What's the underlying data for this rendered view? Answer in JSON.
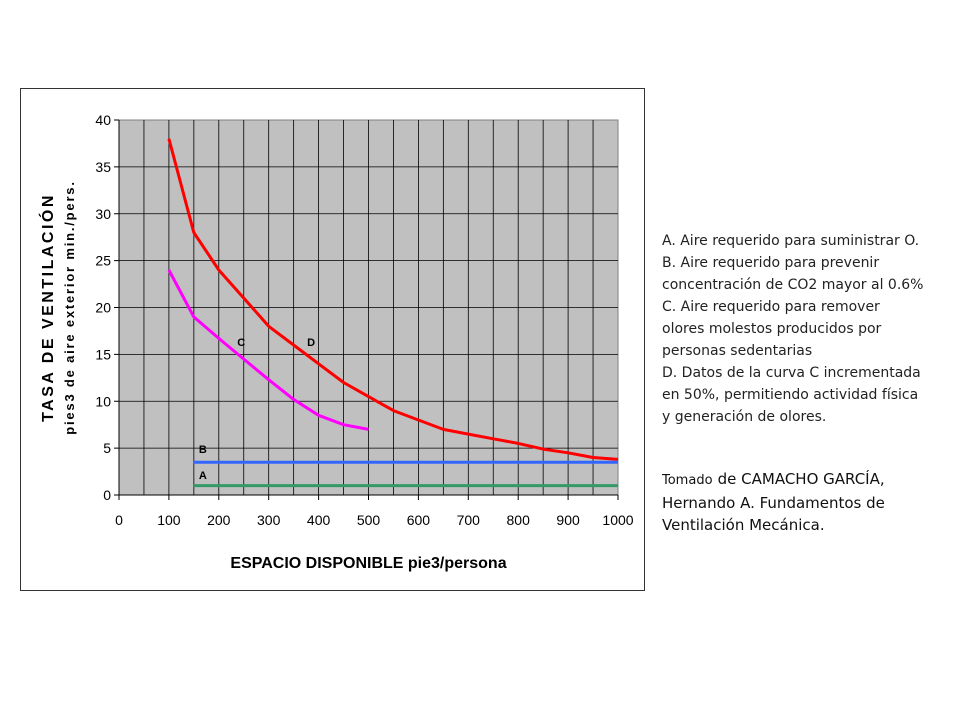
{
  "chart_data": {
    "type": "line",
    "title": "",
    "xlabel": "ESPACIO DISPONIBLE pie3/persona",
    "ylabel_line1": "TASA DE VENTILACIÓN",
    "ylabel_line2": "pies3 de aire exterior min./pers.",
    "xlim": [
      0,
      1000
    ],
    "ylim": [
      0,
      40
    ],
    "x_ticks": [
      0,
      100,
      200,
      300,
      400,
      500,
      600,
      700,
      800,
      900,
      1000
    ],
    "y_ticks": [
      0,
      5,
      10,
      15,
      20,
      25,
      30,
      35,
      40
    ],
    "x_minor_step": 50,
    "grid": true,
    "plot_background": "#c0c0c0",
    "series": [
      {
        "name": "D",
        "color": "#ff0000",
        "x": [
          100,
          150,
          200,
          250,
          300,
          350,
          400,
          450,
          500,
          550,
          600,
          650,
          700,
          750,
          800,
          850,
          900,
          950,
          1000
        ],
        "y": [
          38,
          28,
          24,
          21,
          18,
          16,
          14,
          12,
          10.5,
          9,
          8,
          7,
          6.5,
          6,
          5.5,
          4.9,
          4.5,
          4,
          3.8
        ]
      },
      {
        "name": "C",
        "color": "#ff00ff",
        "x": [
          100,
          150,
          200,
          250,
          300,
          350,
          400,
          450,
          500
        ],
        "y": [
          24,
          19,
          16.7,
          14.5,
          12.3,
          10.2,
          8.5,
          7.5,
          7
        ]
      },
      {
        "name": "B",
        "color": "#3366ff",
        "x": [
          150,
          1000
        ],
        "y": [
          3.5,
          3.5
        ]
      },
      {
        "name": "A",
        "color": "#339966",
        "x": [
          150,
          1000
        ],
        "y": [
          1,
          1
        ]
      }
    ],
    "annotations": [
      {
        "text": "C",
        "x": 245,
        "y": 15.9
      },
      {
        "text": "D",
        "x": 385,
        "y": 15.9
      },
      {
        "text": "B",
        "x": 168,
        "y": 4.5
      },
      {
        "text": "A",
        "x": 168,
        "y": 1.7
      }
    ]
  },
  "notes": [
    "A. Aire requerido para suministrar O.",
    "B. Aire requerido para prevenir",
    "concentración de CO2 mayor al 0.6%",
    "C. Aire requerido para remover",
    "olores molestos producidos por",
    "personas sedentarias",
    "D. Datos de la curva C incrementada",
    "en 50%, permitiendo actividad física",
    "y generación de olores."
  ],
  "source": {
    "prefix": "Tomado",
    "text": "de  CAMACHO GARCÍA, Hernando A. Fundamentos de Ventilación Mecánica."
  }
}
